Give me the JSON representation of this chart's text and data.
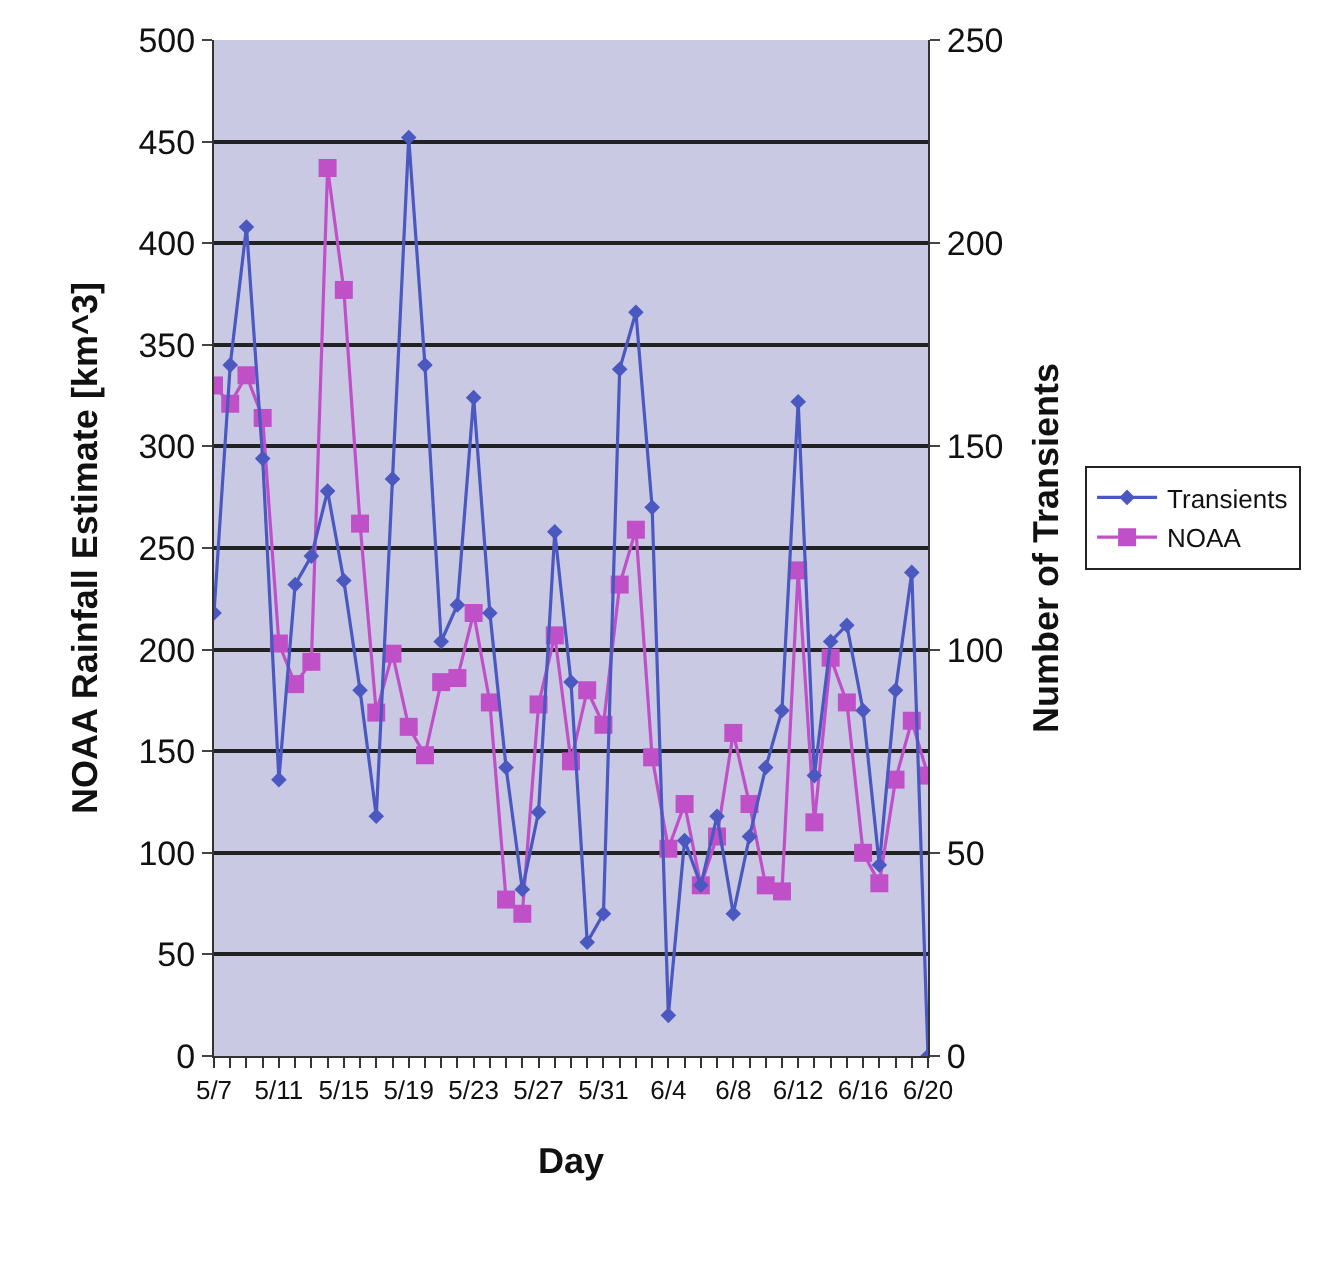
{
  "chart_data": {
    "type": "line",
    "xlabel": "Day",
    "ylabel": "NOAA Rainfall Estimate [km^3]",
    "y2label": "Number of Transients",
    "categories": [
      "5/7",
      null,
      null,
      null,
      "5/11",
      null,
      null,
      null,
      "5/15",
      null,
      null,
      null,
      "5/19",
      null,
      null,
      null,
      "5/23",
      null,
      null,
      null,
      "5/27",
      null,
      null,
      null,
      "5/31",
      null,
      null,
      null,
      "6/4",
      null,
      null,
      null,
      "6/8",
      null,
      null,
      null,
      "6/12",
      null,
      null,
      null,
      "6/16",
      null,
      null,
      null,
      "6/20"
    ],
    "series": [
      {
        "name": "Transients",
        "color": "#4a58c0",
        "axis": "y2",
        "marker": "diamond",
        "values": [
          109,
          170,
          204,
          147,
          68,
          116,
          123,
          139,
          117,
          90,
          59,
          142,
          226,
          170,
          102,
          111,
          162,
          109,
          71,
          41,
          60,
          129,
          92,
          28,
          35,
          169,
          183,
          135,
          10,
          53,
          42,
          59,
          35,
          54,
          71,
          85,
          161,
          69,
          102,
          106,
          85,
          47,
          90,
          119,
          0
        ]
      },
      {
        "name": "NOAA",
        "color": "#c050c8",
        "marker": "square",
        "values": [
          330,
          321,
          335,
          314,
          203,
          183,
          194,
          437,
          377,
          262,
          169,
          198,
          162,
          148,
          184,
          186,
          218,
          174,
          77,
          70,
          173,
          207,
          145,
          180,
          163,
          232,
          259,
          147,
          102,
          124,
          84,
          108,
          159,
          124,
          84,
          81,
          239,
          115,
          196,
          174,
          100,
          85,
          136,
          165,
          138
        ]
      }
    ],
    "ylim": [
      0,
      500
    ],
    "yticks": [
      0,
      50,
      100,
      150,
      200,
      250,
      300,
      350,
      400,
      450,
      500
    ],
    "y2lim": [
      0,
      250
    ],
    "y2ticks": [
      0,
      50,
      100,
      150,
      200,
      250
    ],
    "grid": "y",
    "legend": "right",
    "line_style": "solid"
  }
}
